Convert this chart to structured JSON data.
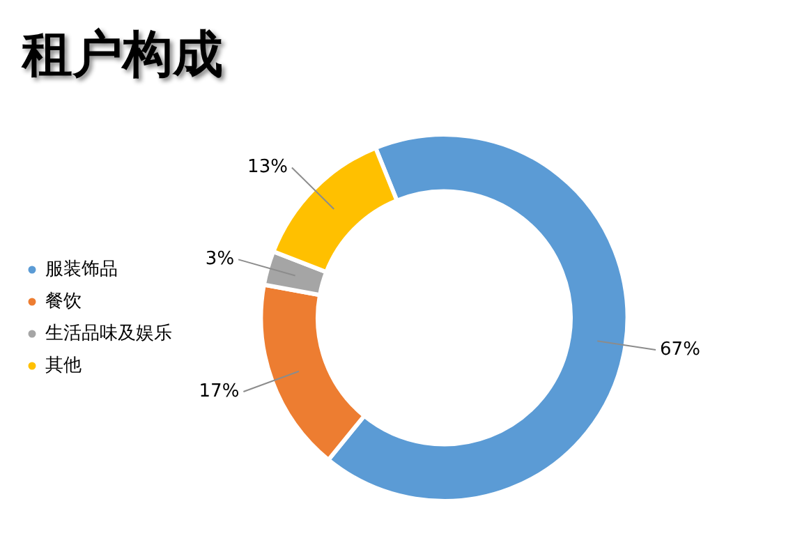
{
  "chart_data": {
    "type": "donut",
    "title": "租户构成",
    "categories": [
      "服装饰品",
      "餐饮",
      "生活品味及娱乐",
      "其他"
    ],
    "values": [
      67,
      17,
      3,
      13
    ],
    "value_labels": [
      "67%",
      "17%",
      "3%",
      "13%"
    ],
    "colors": [
      "#5b9bd5",
      "#ed7d31",
      "#a5a5a5",
      "#ffc000"
    ],
    "legend": "left"
  }
}
